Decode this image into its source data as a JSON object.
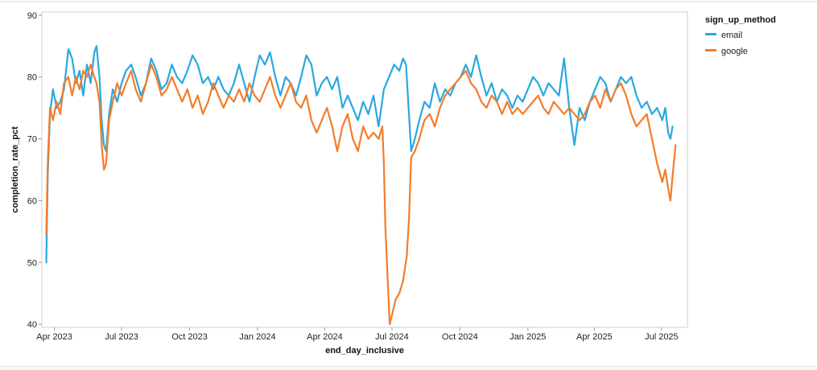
{
  "chart_data": {
    "type": "line",
    "xlabel": "end_day_inclusive",
    "ylabel": "completion_rate_pct",
    "x_range": [
      "2023-03-15",
      "2025-08-05"
    ],
    "ylim": [
      39.5,
      90.5
    ],
    "y_ticks": [
      40,
      50,
      60,
      70,
      80,
      90
    ],
    "x_ticks": [
      {
        "date": "2023-04-01",
        "label": "Apr 2023"
      },
      {
        "date": "2023-07-01",
        "label": "Jul 2023"
      },
      {
        "date": "2023-10-01",
        "label": "Oct 2023"
      },
      {
        "date": "2024-01-01",
        "label": "Jan 2024"
      },
      {
        "date": "2024-04-01",
        "label": "Apr 2024"
      },
      {
        "date": "2024-07-01",
        "label": "Jul 2024"
      },
      {
        "date": "2024-10-01",
        "label": "Oct 2024"
      },
      {
        "date": "2025-01-01",
        "label": "Jan 2025"
      },
      {
        "date": "2025-04-01",
        "label": "Apr 2025"
      },
      {
        "date": "2025-07-01",
        "label": "Jul 2025"
      }
    ],
    "grid": false,
    "legend": {
      "title": "sign_up_method",
      "placement": "right"
    },
    "series": [
      {
        "name": "email",
        "color": "#29a8e0",
        "points": [
          [
            "2023-03-21",
            50
          ],
          [
            "2023-03-23",
            64
          ],
          [
            "2023-03-26",
            74
          ],
          [
            "2023-03-30",
            78
          ],
          [
            "2023-04-04",
            75
          ],
          [
            "2023-04-09",
            76
          ],
          [
            "2023-04-14",
            78
          ],
          [
            "2023-04-20",
            84.5
          ],
          [
            "2023-04-25",
            83
          ],
          [
            "2023-04-30",
            79
          ],
          [
            "2023-05-05",
            81
          ],
          [
            "2023-05-10",
            77
          ],
          [
            "2023-05-15",
            82
          ],
          [
            "2023-05-20",
            79
          ],
          [
            "2023-05-25",
            84
          ],
          [
            "2023-05-28",
            85
          ],
          [
            "2023-06-01",
            80
          ],
          [
            "2023-06-04",
            73
          ],
          [
            "2023-06-07",
            69
          ],
          [
            "2023-06-10",
            68
          ],
          [
            "2023-06-14",
            74
          ],
          [
            "2023-06-19",
            78
          ],
          [
            "2023-06-25",
            76
          ],
          [
            "2023-07-01",
            79
          ],
          [
            "2023-07-07",
            81
          ],
          [
            "2023-07-14",
            82
          ],
          [
            "2023-07-20",
            80
          ],
          [
            "2023-07-27",
            77
          ],
          [
            "2023-08-03",
            79
          ],
          [
            "2023-08-10",
            83
          ],
          [
            "2023-08-17",
            81
          ],
          [
            "2023-08-24",
            78
          ],
          [
            "2023-08-31",
            79
          ],
          [
            "2023-09-07",
            82
          ],
          [
            "2023-09-14",
            80
          ],
          [
            "2023-09-21",
            79
          ],
          [
            "2023-09-28",
            81
          ],
          [
            "2023-10-05",
            83.5
          ],
          [
            "2023-10-12",
            82
          ],
          [
            "2023-10-19",
            79
          ],
          [
            "2023-10-26",
            80
          ],
          [
            "2023-11-02",
            78
          ],
          [
            "2023-11-09",
            80
          ],
          [
            "2023-11-16",
            78
          ],
          [
            "2023-11-23",
            77
          ],
          [
            "2023-11-30",
            79
          ],
          [
            "2023-12-07",
            82
          ],
          [
            "2023-12-14",
            79
          ],
          [
            "2023-12-21",
            76
          ],
          [
            "2023-12-28",
            80
          ],
          [
            "2024-01-04",
            83.5
          ],
          [
            "2024-01-11",
            82
          ],
          [
            "2024-01-18",
            84
          ],
          [
            "2024-01-25",
            80
          ],
          [
            "2024-02-01",
            77
          ],
          [
            "2024-02-08",
            80
          ],
          [
            "2024-02-15",
            79
          ],
          [
            "2024-02-22",
            77
          ],
          [
            "2024-02-29",
            80
          ],
          [
            "2024-03-07",
            83.5
          ],
          [
            "2024-03-14",
            82
          ],
          [
            "2024-03-21",
            77
          ],
          [
            "2024-03-28",
            79
          ],
          [
            "2024-04-04",
            80
          ],
          [
            "2024-04-11",
            78
          ],
          [
            "2024-04-18",
            80
          ],
          [
            "2024-04-25",
            75
          ],
          [
            "2024-05-02",
            77
          ],
          [
            "2024-05-09",
            75
          ],
          [
            "2024-05-16",
            73
          ],
          [
            "2024-05-23",
            76
          ],
          [
            "2024-05-30",
            74
          ],
          [
            "2024-06-06",
            77
          ],
          [
            "2024-06-13",
            72
          ],
          [
            "2024-06-20",
            78
          ],
          [
            "2024-06-27",
            80
          ],
          [
            "2024-07-04",
            82
          ],
          [
            "2024-07-11",
            81
          ],
          [
            "2024-07-16",
            83
          ],
          [
            "2024-07-20",
            82
          ],
          [
            "2024-07-24",
            74
          ],
          [
            "2024-07-27",
            68
          ],
          [
            "2024-08-01",
            70
          ],
          [
            "2024-08-07",
            73
          ],
          [
            "2024-08-14",
            76
          ],
          [
            "2024-08-21",
            75
          ],
          [
            "2024-08-28",
            79
          ],
          [
            "2024-09-04",
            76
          ],
          [
            "2024-09-11",
            78
          ],
          [
            "2024-09-18",
            77
          ],
          [
            "2024-09-25",
            79
          ],
          [
            "2024-10-02",
            80
          ],
          [
            "2024-10-09",
            82
          ],
          [
            "2024-10-16",
            80
          ],
          [
            "2024-10-23",
            83.5
          ],
          [
            "2024-10-30",
            80
          ],
          [
            "2024-11-06",
            77
          ],
          [
            "2024-11-13",
            79
          ],
          [
            "2024-11-20",
            76
          ],
          [
            "2024-11-27",
            78
          ],
          [
            "2024-12-04",
            77
          ],
          [
            "2024-12-11",
            75
          ],
          [
            "2024-12-18",
            77
          ],
          [
            "2024-12-25",
            76
          ],
          [
            "2025-01-01",
            78
          ],
          [
            "2025-01-08",
            80
          ],
          [
            "2025-01-15",
            79
          ],
          [
            "2025-01-22",
            77
          ],
          [
            "2025-01-29",
            79
          ],
          [
            "2025-02-05",
            78
          ],
          [
            "2025-02-12",
            77
          ],
          [
            "2025-02-19",
            83
          ],
          [
            "2025-02-26",
            75
          ],
          [
            "2025-03-05",
            69
          ],
          [
            "2025-03-12",
            75
          ],
          [
            "2025-03-19",
            73
          ],
          [
            "2025-03-26",
            76
          ],
          [
            "2025-04-02",
            78
          ],
          [
            "2025-04-09",
            80
          ],
          [
            "2025-04-16",
            79
          ],
          [
            "2025-04-23",
            76
          ],
          [
            "2025-04-30",
            78
          ],
          [
            "2025-05-07",
            80
          ],
          [
            "2025-05-14",
            79
          ],
          [
            "2025-05-21",
            80
          ],
          [
            "2025-05-28",
            77
          ],
          [
            "2025-06-04",
            75
          ],
          [
            "2025-06-11",
            76
          ],
          [
            "2025-06-18",
            74
          ],
          [
            "2025-06-25",
            75
          ],
          [
            "2025-07-02",
            73
          ],
          [
            "2025-07-06",
            75
          ],
          [
            "2025-07-10",
            71
          ],
          [
            "2025-07-13",
            70
          ],
          [
            "2025-07-16",
            72
          ]
        ]
      },
      {
        "name": "google",
        "color": "#f47c2a",
        "points": [
          [
            "2023-03-21",
            54.5
          ],
          [
            "2023-03-23",
            66
          ],
          [
            "2023-03-26",
            75
          ],
          [
            "2023-03-30",
            73
          ],
          [
            "2023-04-04",
            76
          ],
          [
            "2023-04-09",
            74
          ],
          [
            "2023-04-14",
            79
          ],
          [
            "2023-04-20",
            80
          ],
          [
            "2023-04-25",
            77
          ],
          [
            "2023-04-30",
            80
          ],
          [
            "2023-05-05",
            78
          ],
          [
            "2023-05-10",
            81
          ],
          [
            "2023-05-15",
            80
          ],
          [
            "2023-05-20",
            82
          ],
          [
            "2023-05-25",
            80
          ],
          [
            "2023-05-28",
            79
          ],
          [
            "2023-06-01",
            76
          ],
          [
            "2023-06-04",
            69
          ],
          [
            "2023-06-07",
            65
          ],
          [
            "2023-06-10",
            66
          ],
          [
            "2023-06-14",
            73
          ],
          [
            "2023-06-19",
            76
          ],
          [
            "2023-06-25",
            79
          ],
          [
            "2023-07-01",
            77
          ],
          [
            "2023-07-07",
            79
          ],
          [
            "2023-07-14",
            81
          ],
          [
            "2023-07-20",
            78
          ],
          [
            "2023-07-27",
            76
          ],
          [
            "2023-08-03",
            79
          ],
          [
            "2023-08-10",
            82
          ],
          [
            "2023-08-17",
            80
          ],
          [
            "2023-08-24",
            77
          ],
          [
            "2023-08-31",
            78
          ],
          [
            "2023-09-07",
            80
          ],
          [
            "2023-09-14",
            78
          ],
          [
            "2023-09-21",
            76
          ],
          [
            "2023-09-28",
            78
          ],
          [
            "2023-10-05",
            75
          ],
          [
            "2023-10-12",
            77
          ],
          [
            "2023-10-19",
            74
          ],
          [
            "2023-10-26",
            76
          ],
          [
            "2023-11-02",
            79
          ],
          [
            "2023-11-09",
            77
          ],
          [
            "2023-11-16",
            75
          ],
          [
            "2023-11-23",
            77
          ],
          [
            "2023-11-30",
            76
          ],
          [
            "2023-12-07",
            78
          ],
          [
            "2023-12-14",
            76
          ],
          [
            "2023-12-21",
            79
          ],
          [
            "2023-12-28",
            77
          ],
          [
            "2024-01-04",
            76
          ],
          [
            "2024-01-11",
            78
          ],
          [
            "2024-01-18",
            80
          ],
          [
            "2024-01-25",
            77
          ],
          [
            "2024-02-01",
            75
          ],
          [
            "2024-02-08",
            77
          ],
          [
            "2024-02-15",
            79
          ],
          [
            "2024-02-22",
            76
          ],
          [
            "2024-02-29",
            75
          ],
          [
            "2024-03-07",
            77
          ],
          [
            "2024-03-14",
            73
          ],
          [
            "2024-03-21",
            71
          ],
          [
            "2024-03-28",
            73
          ],
          [
            "2024-04-04",
            75
          ],
          [
            "2024-04-11",
            72
          ],
          [
            "2024-04-18",
            68
          ],
          [
            "2024-04-25",
            72
          ],
          [
            "2024-05-02",
            74
          ],
          [
            "2024-05-09",
            70
          ],
          [
            "2024-05-16",
            68
          ],
          [
            "2024-05-23",
            72
          ],
          [
            "2024-05-30",
            70
          ],
          [
            "2024-06-06",
            71
          ],
          [
            "2024-06-13",
            70
          ],
          [
            "2024-06-18",
            72
          ],
          [
            "2024-06-20",
            66
          ],
          [
            "2024-06-22",
            56
          ],
          [
            "2024-06-25",
            48
          ],
          [
            "2024-06-28",
            40
          ],
          [
            "2024-07-02",
            42
          ],
          [
            "2024-07-06",
            44
          ],
          [
            "2024-07-11",
            45
          ],
          [
            "2024-07-16",
            47
          ],
          [
            "2024-07-21",
            51
          ],
          [
            "2024-07-24",
            57
          ],
          [
            "2024-07-27",
            67
          ],
          [
            "2024-08-01",
            68
          ],
          [
            "2024-08-07",
            70
          ],
          [
            "2024-08-14",
            73
          ],
          [
            "2024-08-21",
            74
          ],
          [
            "2024-08-28",
            72
          ],
          [
            "2024-09-04",
            75
          ],
          [
            "2024-09-11",
            77
          ],
          [
            "2024-09-18",
            78
          ],
          [
            "2024-09-25",
            79
          ],
          [
            "2024-10-02",
            80
          ],
          [
            "2024-10-09",
            81
          ],
          [
            "2024-10-16",
            79
          ],
          [
            "2024-10-23",
            78
          ],
          [
            "2024-10-30",
            76
          ],
          [
            "2024-11-06",
            75
          ],
          [
            "2024-11-13",
            77
          ],
          [
            "2024-11-20",
            76
          ],
          [
            "2024-11-27",
            74
          ],
          [
            "2024-12-04",
            76
          ],
          [
            "2024-12-11",
            74
          ],
          [
            "2024-12-18",
            75
          ],
          [
            "2024-12-25",
            74
          ],
          [
            "2025-01-01",
            75
          ],
          [
            "2025-01-08",
            76
          ],
          [
            "2025-01-15",
            77
          ],
          [
            "2025-01-22",
            75
          ],
          [
            "2025-01-29",
            74
          ],
          [
            "2025-02-05",
            76
          ],
          [
            "2025-02-12",
            75
          ],
          [
            "2025-02-19",
            74
          ],
          [
            "2025-02-26",
            75
          ],
          [
            "2025-03-05",
            74
          ],
          [
            "2025-03-12",
            73
          ],
          [
            "2025-03-19",
            74
          ],
          [
            "2025-03-26",
            76
          ],
          [
            "2025-04-02",
            77
          ],
          [
            "2025-04-09",
            75
          ],
          [
            "2025-04-16",
            78
          ],
          [
            "2025-04-23",
            76
          ],
          [
            "2025-04-30",
            78
          ],
          [
            "2025-05-07",
            79
          ],
          [
            "2025-05-14",
            77
          ],
          [
            "2025-05-21",
            74
          ],
          [
            "2025-05-28",
            72
          ],
          [
            "2025-06-04",
            73
          ],
          [
            "2025-06-11",
            74
          ],
          [
            "2025-06-18",
            70
          ],
          [
            "2025-06-25",
            66
          ],
          [
            "2025-07-02",
            63
          ],
          [
            "2025-07-06",
            65
          ],
          [
            "2025-07-10",
            62
          ],
          [
            "2025-07-13",
            60
          ],
          [
            "2025-07-16",
            64
          ],
          [
            "2025-07-20",
            69
          ]
        ]
      }
    ]
  }
}
